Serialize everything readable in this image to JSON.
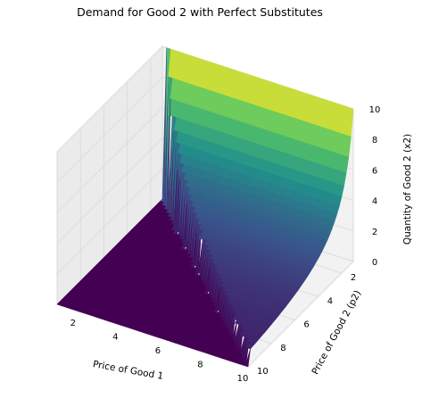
{
  "chart_data": {
    "type": "surface3d",
    "title": "Demand for Good 2 with Perfect Substitutes",
    "xlabel": "Price of Good 1",
    "ylabel": "Price of Good 2 (p2)",
    "zlabel": "Quantity of Good 2 (x2)",
    "xlim": [
      1,
      10
    ],
    "ylim": [
      1,
      10
    ],
    "zlim": [
      0,
      10
    ],
    "xticks": [
      "2",
      "4",
      "6",
      "8",
      "10"
    ],
    "yticks": [
      "2",
      "4",
      "6",
      "8",
      "10"
    ],
    "zticks": [
      "0",
      "2",
      "4",
      "6",
      "8",
      "10"
    ],
    "income": 10,
    "rule": "x2 = income / p2 when p2 < p1, otherwise 0",
    "colormap": "viridis",
    "colormap_stops": [
      "#440154",
      "#3b528b",
      "#21918c",
      "#5ec962",
      "#fde725"
    ],
    "grid": true,
    "pane_color": "#f2f2f2",
    "grid_color": "#d9d9d9"
  }
}
